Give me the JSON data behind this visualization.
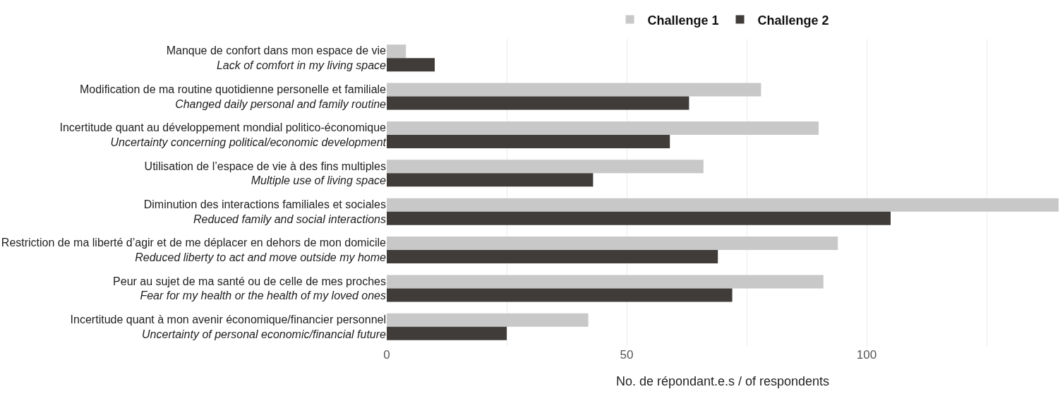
{
  "chart_data": {
    "type": "bar",
    "orientation": "horizontal",
    "categories": [
      "Manque de confort dans mon espace de vie\nLack of comfort in my living space",
      "Modification de ma routine quotidienne personelle et familiale\nChanged daily personal and family routine",
      "Incertitude quant au développement mondial politico-économique\nUncertainty concerning political/economic development",
      "Utilisation de l’espace de vie à des fins multiples\nMultiple use of living space",
      "Diminution des interactions familiales et sociales\nReduced family and social interactions",
      "Restriction de ma liberté d’agir et de me déplacer en dehors de mon domicile\nReduced liberty to act and move outside my home",
      "Peur au sujet de ma santé ou de celle de mes proches\nFear for my health or the health of my loved ones",
      "Incertitude quant à mon avenir économique/financier personnel\nUncertainty of personal economic/financial future"
    ],
    "series": [
      {
        "name": "Challenge 1",
        "color": "#c8c8c8",
        "values": [
          4,
          78,
          90,
          66,
          140,
          94,
          91,
          42
        ]
      },
      {
        "name": "Challenge 2",
        "color": "#403c3a",
        "values": [
          10,
          63,
          59,
          43,
          105,
          69,
          72,
          25
        ]
      }
    ],
    "xlabel": "No. de répondant.e.s / of respondents",
    "xlim": [
      0,
      140
    ],
    "xticks": [
      0,
      {
        "value": 25,
        "label": null
      },
      50,
      {
        "value": 75,
        "label": null
      },
      100,
      {
        "value": 125,
        "label": null
      }
    ],
    "grid": "x",
    "legend": "top"
  }
}
